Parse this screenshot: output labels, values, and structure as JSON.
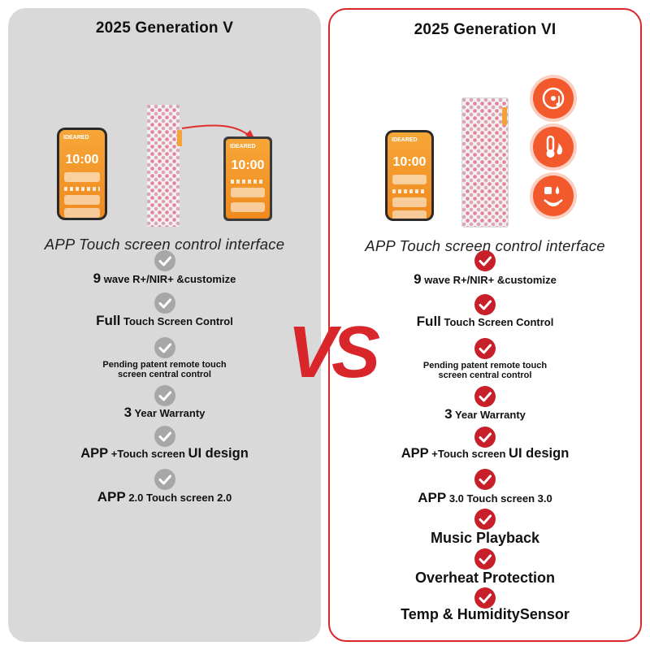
{
  "left_panel": {
    "title": "2025 Generation V",
    "caption": "APP Touch screen control interface",
    "device": {
      "phone_logo": "IDEARED",
      "phone_time": "10:00",
      "tablet_logo": "IDEARED",
      "tablet_time": "10:00"
    },
    "features": [
      {
        "bold": "9",
        "rest": " wave R+/NIR+ &customize"
      },
      {
        "bold": "Full",
        "rest": " Touch Screen Control"
      },
      {
        "line1": "Pending patent remote touch",
        "line2": "screen central control"
      },
      {
        "bold": "3",
        "rest": " Year Warranty"
      },
      {
        "a": "APP",
        "b": " +Touch screen ",
        "c": "UI design"
      },
      {
        "a": "APP",
        "b": " 2.0 Touch screen 2.0"
      }
    ]
  },
  "right_panel": {
    "title": "2025 Generation VI",
    "caption": "APP Touch screen control interface",
    "device": {
      "phone_logo": "IDEARED",
      "phone_time": "10:00"
    },
    "features": [
      {
        "bold": "9",
        "rest": " wave R+/NIR+ &customize"
      },
      {
        "bold": "Full",
        "rest": " Touch Screen Control"
      },
      {
        "line1": "Pending patent remote touch",
        "line2": "screen central control"
      },
      {
        "bold": "3",
        "rest": " Year Warranty"
      },
      {
        "a": "APP",
        "b": " +Touch screen ",
        "c": "UI design"
      },
      {
        "a": "APP",
        "b": " 3.0 Touch screen 3.0"
      },
      {
        "text": "Music Playback"
      },
      {
        "text": "Overheat Protection"
      },
      {
        "text": "Temp & HumiditySensor"
      }
    ],
    "feature_icons": [
      "music-icon",
      "temperature-icon",
      "humidity-sensor-icon"
    ]
  },
  "vs_text": "VS",
  "colors": {
    "accent_red": "#d9262b",
    "check_red": "#c8202a",
    "check_grey": "#a7a7a7",
    "panel_grey": "#d9d9d9",
    "orange": "#f2592c"
  }
}
